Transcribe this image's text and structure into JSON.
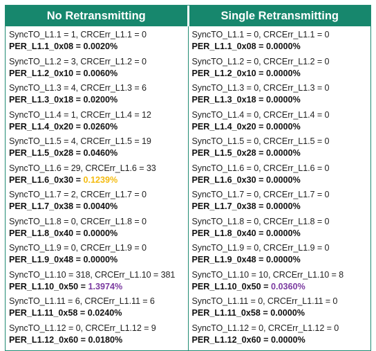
{
  "headers": {
    "left": "No Retransmitting",
    "right": "Single Retransmitting"
  },
  "colors": {
    "header_bg": "#17876d",
    "border": "#1f8a72",
    "highlight_yellow": "#f4bb10",
    "highlight_purple": "#7a3aa0"
  },
  "left": [
    {
      "sync": "SyncTO_L1.1 = 1, CRCErr_L1.1 = 0",
      "per_label": "PER_L1.1_0x08 = ",
      "per_value": "0.0020%",
      "highlight": ""
    },
    {
      "sync": "SyncTO_L1.2 = 3, CRCErr_L1.2 = 0",
      "per_label": "PER_L1.2_0x10 = ",
      "per_value": "0.0060%",
      "highlight": ""
    },
    {
      "sync": "SyncTO_L1.3 = 4, CRCErr_L1.3 = 6",
      "per_label": "PER_L1.3_0x18 = ",
      "per_value": "0.0200%",
      "highlight": ""
    },
    {
      "sync": "SyncTO_L1.4 = 1, CRCErr_L1.4 = 12",
      "per_label": "PER_L1.4_0x20 = ",
      "per_value": "0.0260%",
      "highlight": ""
    },
    {
      "sync": "SyncTO_L1.5 = 4, CRCErr_L1.5 = 19",
      "per_label": "PER_L1.5_0x28 = ",
      "per_value": "0.0460%",
      "highlight": ""
    },
    {
      "sync": "SyncTO_L1.6 = 29, CRCErr_L1.6 = 33",
      "per_label": "PER_L1.6_0x30 = ",
      "per_value": "0.1239%",
      "highlight": "yellow"
    },
    {
      "sync": "SyncTO_L1.7 = 2, CRCErr_L1.7 = 0",
      "per_label": "PER_L1.7_0x38 = ",
      "per_value": "0.0040%",
      "highlight": ""
    },
    {
      "sync": "SyncTO_L1.8 = 0, CRCErr_L1.8 = 0",
      "per_label": "PER_L1.8_0x40 = ",
      "per_value": "0.0000%",
      "highlight": ""
    },
    {
      "sync": "SyncTO_L1.9 = 0, CRCErr_L1.9 = 0",
      "per_label": "PER_L1.9_0x48 = ",
      "per_value": "0.0000%",
      "highlight": ""
    },
    {
      "sync": "SyncTO_L1.10 = 318, CRCErr_L1.10 = 381",
      "per_label": "PER_L1.10_0x50 = ",
      "per_value": "1.3974%",
      "highlight": "purple"
    },
    {
      "sync": "SyncTO_L1.11 = 6, CRCErr_L1.11 = 6",
      "per_label": "PER_L1.11_0x58 = ",
      "per_value": "0.0240%",
      "highlight": ""
    },
    {
      "sync": "SyncTO_L1.12 = 0, CRCErr_L1.12 = 9",
      "per_label": "PER_L1.12_0x60 = ",
      "per_value": "0.0180%",
      "highlight": ""
    }
  ],
  "right": [
    {
      "sync": "SyncTO_L1.1 = 0, CRCErr_L1.1 = 0",
      "per_label": "PER_L1.1_0x08 = ",
      "per_value": "0.0000%",
      "highlight": ""
    },
    {
      "sync": "SyncTO_L1.2 = 0, CRCErr_L1.2 = 0",
      "per_label": "PER_L1.2_0x10 = ",
      "per_value": "0.0000%",
      "highlight": ""
    },
    {
      "sync": "SyncTO_L1.3 = 0, CRCErr_L1.3 = 0",
      "per_label": "PER_L1.3_0x18 = ",
      "per_value": "0.0000%",
      "highlight": ""
    },
    {
      "sync": "SyncTO_L1.4 = 0, CRCErr_L1.4 = 0",
      "per_label": "PER_L1.4_0x20 = ",
      "per_value": "0.0000%",
      "highlight": ""
    },
    {
      "sync": "SyncTO_L1.5 = 0, CRCErr_L1.5 = 0",
      "per_label": "PER_L1.5_0x28 = ",
      "per_value": "0.0000%",
      "highlight": ""
    },
    {
      "sync": "SyncTO_L1.6 = 0, CRCErr_L1.6 = 0",
      "per_label": "PER_L1.6_0x30 = ",
      "per_value": "0.0000%",
      "highlight": ""
    },
    {
      "sync": "SyncTO_L1.7 = 0, CRCErr_L1.7 = 0",
      "per_label": "PER_L1.7_0x38 = ",
      "per_value": "0.0000%",
      "highlight": ""
    },
    {
      "sync": "SyncTO_L1.8 = 0, CRCErr_L1.8 = 0",
      "per_label": "PER_L1.8_0x40 = ",
      "per_value": "0.0000%",
      "highlight": ""
    },
    {
      "sync": "SyncTO_L1.9 = 0, CRCErr_L1.9 = 0",
      "per_label": "PER_L1.9_0x48 = ",
      "per_value": "0.0000%",
      "highlight": ""
    },
    {
      "sync": "SyncTO_L1.10 = 10, CRCErr_L1.10 = 8",
      "per_label": "PER_L1.10_0x50 = ",
      "per_value": "0.0360%",
      "highlight": "purple"
    },
    {
      "sync": "SyncTO_L1.11 = 0, CRCErr_L1.11 = 0",
      "per_label": "PER_L1.11_0x58 = ",
      "per_value": "0.0000%",
      "highlight": ""
    },
    {
      "sync": "SyncTO_L1.12 = 0, CRCErr_L1.12 = 0",
      "per_label": "PER_L1.12_0x60 = ",
      "per_value": "0.0000%",
      "highlight": ""
    }
  ]
}
